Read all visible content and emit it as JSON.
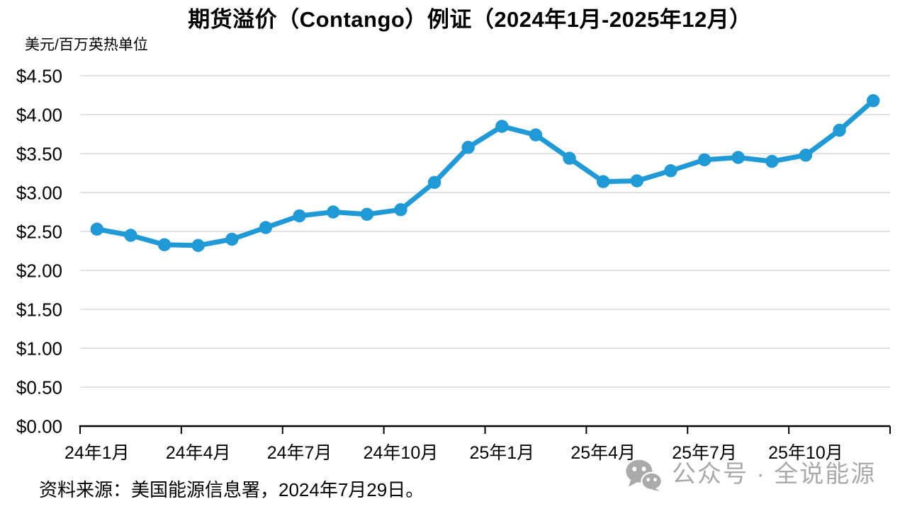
{
  "title": "期货溢价（Contango）例证（2024年1月-2025年12月）",
  "unit_label": "美元/百万英热单位",
  "source_note": "资料来源：美国能源信息署，2024年7月29日。",
  "watermark": {
    "icon": "wechat-icon",
    "text": "公众号 · 全说能源",
    "color": "#a9a9a9"
  },
  "chart_data": {
    "type": "line",
    "title": "期货溢价（Contango）例证（2024年1月-2025年12月）",
    "ylabel": "美元/百万英热单位",
    "xlabel": "",
    "categories": [
      "2024-01",
      "2024-02",
      "2024-03",
      "2024-04",
      "2024-05",
      "2024-06",
      "2024-07",
      "2024-08",
      "2024-09",
      "2024-10",
      "2024-11",
      "2024-12",
      "2025-01",
      "2025-02",
      "2025-03",
      "2025-04",
      "2025-05",
      "2025-06",
      "2025-07",
      "2025-08",
      "2025-09",
      "2025-10",
      "2025-11",
      "2025-12"
    ],
    "values": [
      2.53,
      2.45,
      2.33,
      2.32,
      2.4,
      2.55,
      2.7,
      2.75,
      2.72,
      2.78,
      3.13,
      3.58,
      3.85,
      3.74,
      3.44,
      3.14,
      3.15,
      3.28,
      3.42,
      3.45,
      3.4,
      3.48,
      3.8,
      4.18
    ],
    "x_tick_labels": [
      "24年1月",
      "24年4月",
      "24年7月",
      "24年10月",
      "25年1月",
      "25年4月",
      "25年7月",
      "25年10月"
    ],
    "x_tick_every": 3,
    "y_ticks": [
      {
        "value": 0.0,
        "label": "$0.00"
      },
      {
        "value": 0.5,
        "label": "$0.50"
      },
      {
        "value": 1.0,
        "label": "$1.00"
      },
      {
        "value": 1.5,
        "label": "$1.50"
      },
      {
        "value": 2.0,
        "label": "$2.00"
      },
      {
        "value": 2.5,
        "label": "$2.50"
      },
      {
        "value": 3.0,
        "label": "$3.00"
      },
      {
        "value": 3.5,
        "label": "$3.50"
      },
      {
        "value": 4.0,
        "label": "$4.00"
      },
      {
        "value": 4.5,
        "label": "$4.50"
      }
    ],
    "ylim": [
      0,
      4.5
    ],
    "grid": true,
    "legend": false,
    "line_color": "#1f9ad7",
    "grid_color": "#d9d9d9",
    "axis_color": "#000000",
    "marker": "circle"
  }
}
